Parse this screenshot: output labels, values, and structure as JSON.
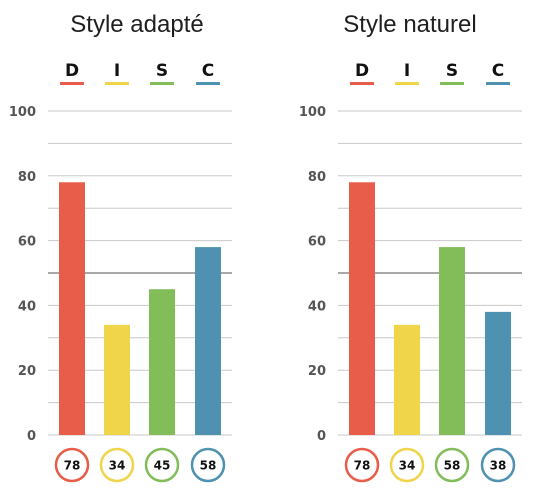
{
  "chart_data": [
    {
      "type": "bar",
      "title": "Style adapté",
      "categories": [
        "D",
        "I",
        "S",
        "C"
      ],
      "values": [
        78,
        34,
        45,
        58
      ],
      "value_labels": [
        "78",
        "34",
        "45",
        "58"
      ],
      "ylim": [
        0,
        100
      ],
      "yticks": [
        "0",
        "20",
        "40",
        "60",
        "80",
        "100"
      ],
      "grid": true,
      "legend": "top"
    },
    {
      "type": "bar",
      "title": "Style naturel",
      "categories": [
        "D",
        "I",
        "S",
        "C"
      ],
      "values": [
        78,
        34,
        58,
        38
      ],
      "value_labels": [
        "78",
        "34",
        "58",
        "38"
      ],
      "ylim": [
        0,
        100
      ],
      "yticks": [
        "0",
        "20",
        "40",
        "60",
        "80",
        "100"
      ],
      "grid": true,
      "legend": "top"
    }
  ],
  "colors": {
    "D": "#e85c4a",
    "I": "#f0d44a",
    "S": "#82bd5a",
    "C": "#4e91b0",
    "grid": "#c8c8c8",
    "midline": "#a8a8a8"
  }
}
